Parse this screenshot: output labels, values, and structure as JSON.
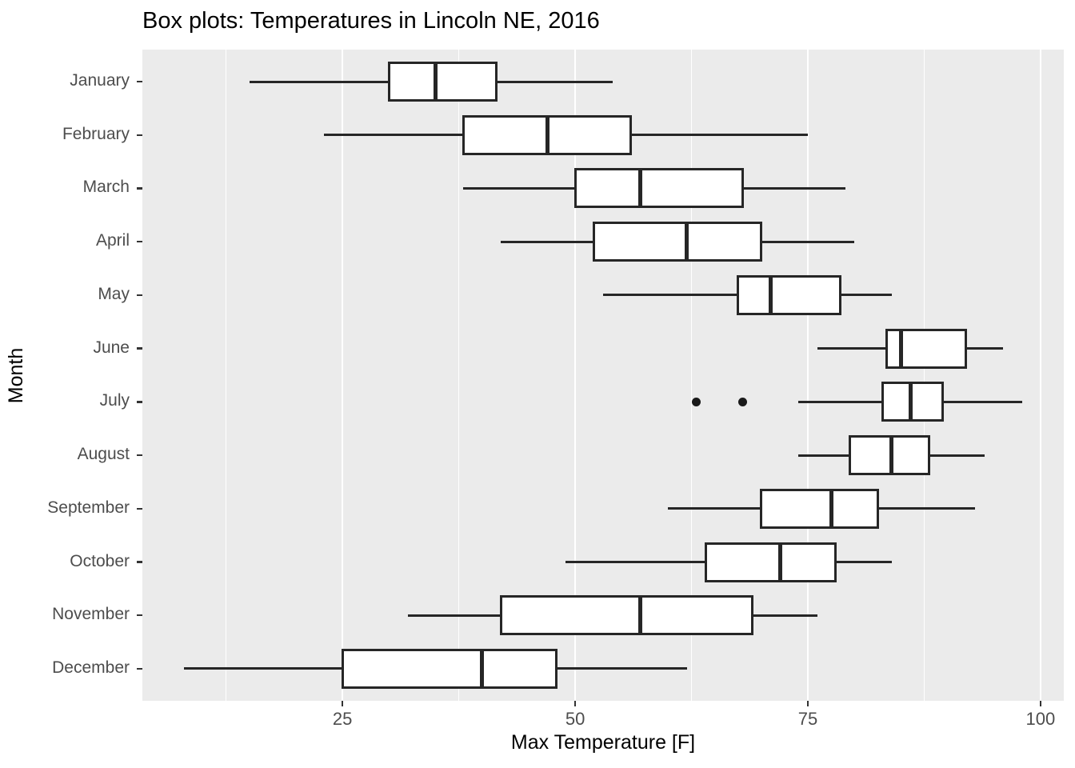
{
  "chart_data": {
    "type": "boxplot",
    "orientation": "horizontal",
    "title": "Box plots: Temperatures in Lincoln NE, 2016",
    "xlabel": "Max Temperature [F]",
    "ylabel": "Month",
    "xlim": [
      3.5,
      102.5
    ],
    "x_major_ticks": [
      25,
      50,
      75,
      100
    ],
    "x_minor_gridlines": [
      12.5,
      37.5,
      62.5,
      87.5
    ],
    "grid": "on",
    "categories": [
      "January",
      "February",
      "March",
      "April",
      "May",
      "June",
      "July",
      "August",
      "September",
      "October",
      "November",
      "December"
    ],
    "series": [
      {
        "label": "January",
        "whisker_low": 15,
        "q1": 30,
        "median": 35,
        "q3": 41.5,
        "whisker_high": 54,
        "outliers": []
      },
      {
        "label": "February",
        "whisker_low": 23,
        "q1": 38,
        "median": 47,
        "q3": 56,
        "whisker_high": 75,
        "outliers": []
      },
      {
        "label": "March",
        "whisker_low": 38,
        "q1": 50,
        "median": 57,
        "q3": 68,
        "whisker_high": 79,
        "outliers": []
      },
      {
        "label": "April",
        "whisker_low": 42,
        "q1": 52,
        "median": 62,
        "q3": 70,
        "whisker_high": 80,
        "outliers": []
      },
      {
        "label": "May",
        "whisker_low": 53,
        "q1": 67.5,
        "median": 71,
        "q3": 78.5,
        "whisker_high": 84,
        "outliers": []
      },
      {
        "label": "June",
        "whisker_low": 76,
        "q1": 83.5,
        "median": 85,
        "q3": 92,
        "whisker_high": 96,
        "outliers": []
      },
      {
        "label": "July",
        "whisker_low": 74,
        "q1": 83,
        "median": 86,
        "q3": 89.5,
        "whisker_high": 98,
        "outliers": [
          63,
          68
        ]
      },
      {
        "label": "August",
        "whisker_low": 74,
        "q1": 79.5,
        "median": 84,
        "q3": 88,
        "whisker_high": 94,
        "outliers": []
      },
      {
        "label": "September",
        "whisker_low": 60,
        "q1": 70,
        "median": 77.5,
        "q3": 82.5,
        "whisker_high": 93,
        "outliers": []
      },
      {
        "label": "October",
        "whisker_low": 49,
        "q1": 64,
        "median": 72,
        "q3": 78,
        "whisker_high": 84,
        "outliers": []
      },
      {
        "label": "November",
        "whisker_low": 32,
        "q1": 42,
        "median": 57,
        "q3": 69,
        "whisker_high": 76,
        "outliers": []
      },
      {
        "label": "December",
        "whisker_low": 8,
        "q1": 25,
        "median": 40,
        "q3": 48,
        "whisker_high": 62,
        "outliers": []
      }
    ]
  },
  "style": {
    "panel_bg": "#EBEBEB",
    "gridline_color": "#FFFFFF",
    "box_fill": "#FFFFFF",
    "box_stroke": "#262626",
    "median_color": "#262626",
    "whisker_color": "#262626",
    "outlier_color": "#1A1A1A",
    "tick_text_color": "#4D4D4D",
    "title_color": "#000000"
  }
}
